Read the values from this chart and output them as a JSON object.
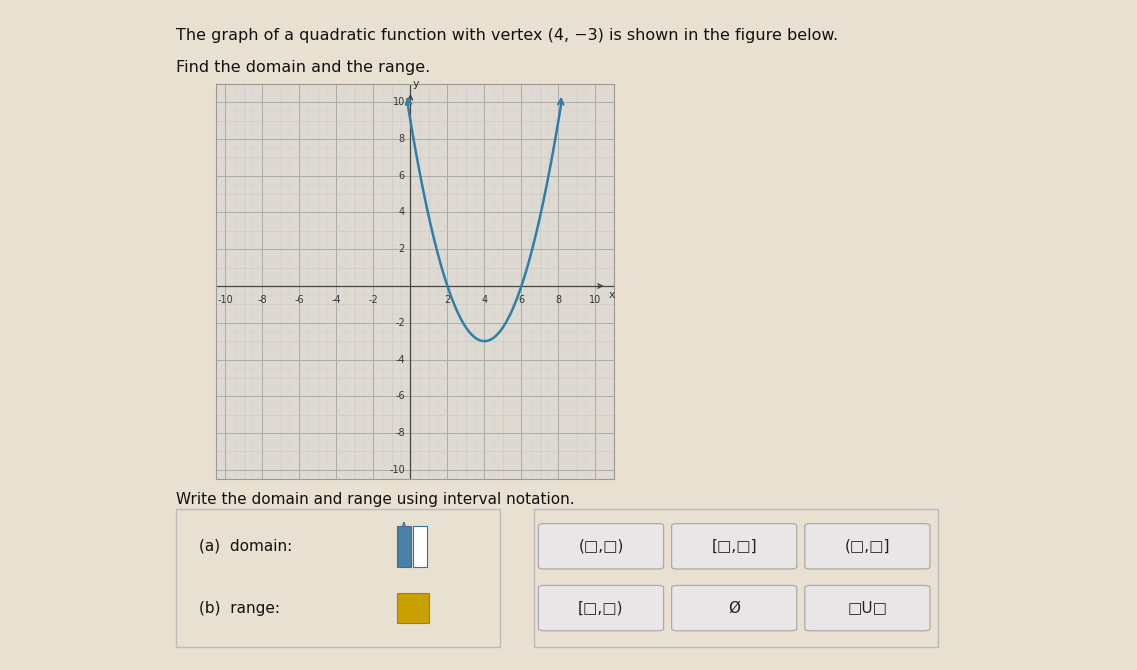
{
  "title_line1": "The graph of a quadratic function with vertex (4, −3) is shown in the figure below.",
  "title_line2": "Find the domain and the range.",
  "subtitle": "Write the domain and range using interval notation.",
  "vertex": [
    4,
    -3
  ],
  "parabola_a": 0.75,
  "x_range": [
    -10,
    10
  ],
  "y_range": [
    -10,
    10
  ],
  "curve_color": "#2e7fa8",
  "curve_linewidth": 1.8,
  "grid_minor_color": "#c8c8c8",
  "grid_major_color": "#aaaaaa",
  "axis_color": "#444444",
  "page_bg": "#e8e0d0",
  "left_bar_color": "#7a6a5a",
  "white_paper_bg": "#f5f4f0",
  "plot_bg": "#dedad2",
  "plot_border": "#999999",
  "domain_label": "(a)  domain:",
  "range_label": "(b)  range:",
  "domain_icon_color1": "#4a7fa8",
  "domain_icon_color2": "#ffffff",
  "range_icon_color": "#c8a000",
  "options_line1": [
    "(□,□)",
    "[□,□]",
    "(□,□]"
  ],
  "options_line2": [
    "[□,□)",
    "Ø",
    "□U□"
  ],
  "left_box_bg": "#f0eeea",
  "left_box_border": "#bbbbbb",
  "right_box_bg": "#eeecec",
  "right_box_border": "#bbbbbb",
  "option_box_bg": "#e8e6e6",
  "option_box_border": "#aaaaaa",
  "font_size_title": 11.5,
  "font_size_axis": 7,
  "font_size_labels": 11,
  "font_size_options": 11
}
